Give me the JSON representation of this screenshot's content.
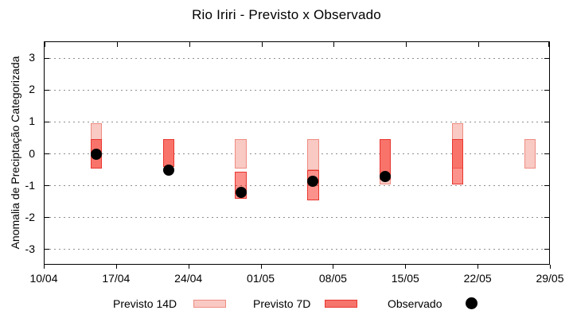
{
  "title": "Rio Iriri - Previsto x Observado",
  "legend": {
    "previsto_14d": "Previsto 14D",
    "previsto_7d": "Previsto 7D",
    "observado": "Observado"
  },
  "colors": {
    "p14_fill": "#f9c9c3",
    "p14_border": "#ee8c82",
    "p7_fill": "rgba(246,13,0,0.45)",
    "p7_legend_fill": "#f5746c",
    "p7_border": "#e8362e",
    "obs": "#000000",
    "grid": "#8f8f8f",
    "frame": "#000000"
  },
  "chart_data": {
    "type": "range-bar+scatter",
    "title": "Rio Iriri - Previsto x Observado",
    "xlabel": "",
    "ylabel": "Anomalia de Preciptação Categorizada",
    "ylim": [
      -3.5,
      3.5
    ],
    "y_ticks": [
      3,
      2,
      1,
      0,
      -1,
      -2,
      -3
    ],
    "xlim_days": [
      0,
      49
    ],
    "x_tick_days": [
      0,
      7,
      14,
      21,
      28,
      35,
      42,
      49
    ],
    "x_tick_labels": [
      "10/04",
      "17/04",
      "24/04",
      "01/05",
      "08/05",
      "15/05",
      "22/05",
      "29/05"
    ],
    "grid": "horizontal dotted at integer y values",
    "legend_position": "below plot",
    "legend_entries": [
      "Previsto 14D",
      "Previsto 7D",
      "Observado"
    ],
    "bar_width_days": 1.1,
    "groups": [
      {
        "date": "15/04",
        "day": 5,
        "previsto_14d": [
          -0.45,
          0.95
        ],
        "previsto_7d": [
          -0.45,
          0.45
        ],
        "observado": 0.0
      },
      {
        "date": "22/04",
        "day": 12,
        "previsto_14d": [
          -0.4,
          0.45
        ],
        "previsto_7d": [
          -0.4,
          0.45
        ],
        "observado": -0.5
      },
      {
        "date": "29/04",
        "day": 19,
        "previsto_14d": [
          -0.45,
          0.45
        ],
        "previsto_7d": [
          -1.4,
          -0.55
        ],
        "observado": -1.2
      },
      {
        "date": "06/05",
        "day": 26,
        "previsto_14d": [
          -0.5,
          0.45
        ],
        "previsto_7d": [
          -1.45,
          -0.5
        ],
        "observado": -0.85
      },
      {
        "date": "13/05",
        "day": 33,
        "previsto_14d": [
          -0.95,
          0.45
        ],
        "previsto_7d": [
          -0.8,
          0.45
        ],
        "observado": -0.7
      },
      {
        "date": "20/05",
        "day": 40,
        "previsto_14d": [
          -0.45,
          0.95
        ],
        "previsto_7d": [
          -0.95,
          0.45
        ],
        "observado": null
      },
      {
        "date": "27/05",
        "day": 47,
        "previsto_14d": [
          -0.45,
          0.45
        ],
        "previsto_7d": null,
        "observado": null
      }
    ]
  }
}
